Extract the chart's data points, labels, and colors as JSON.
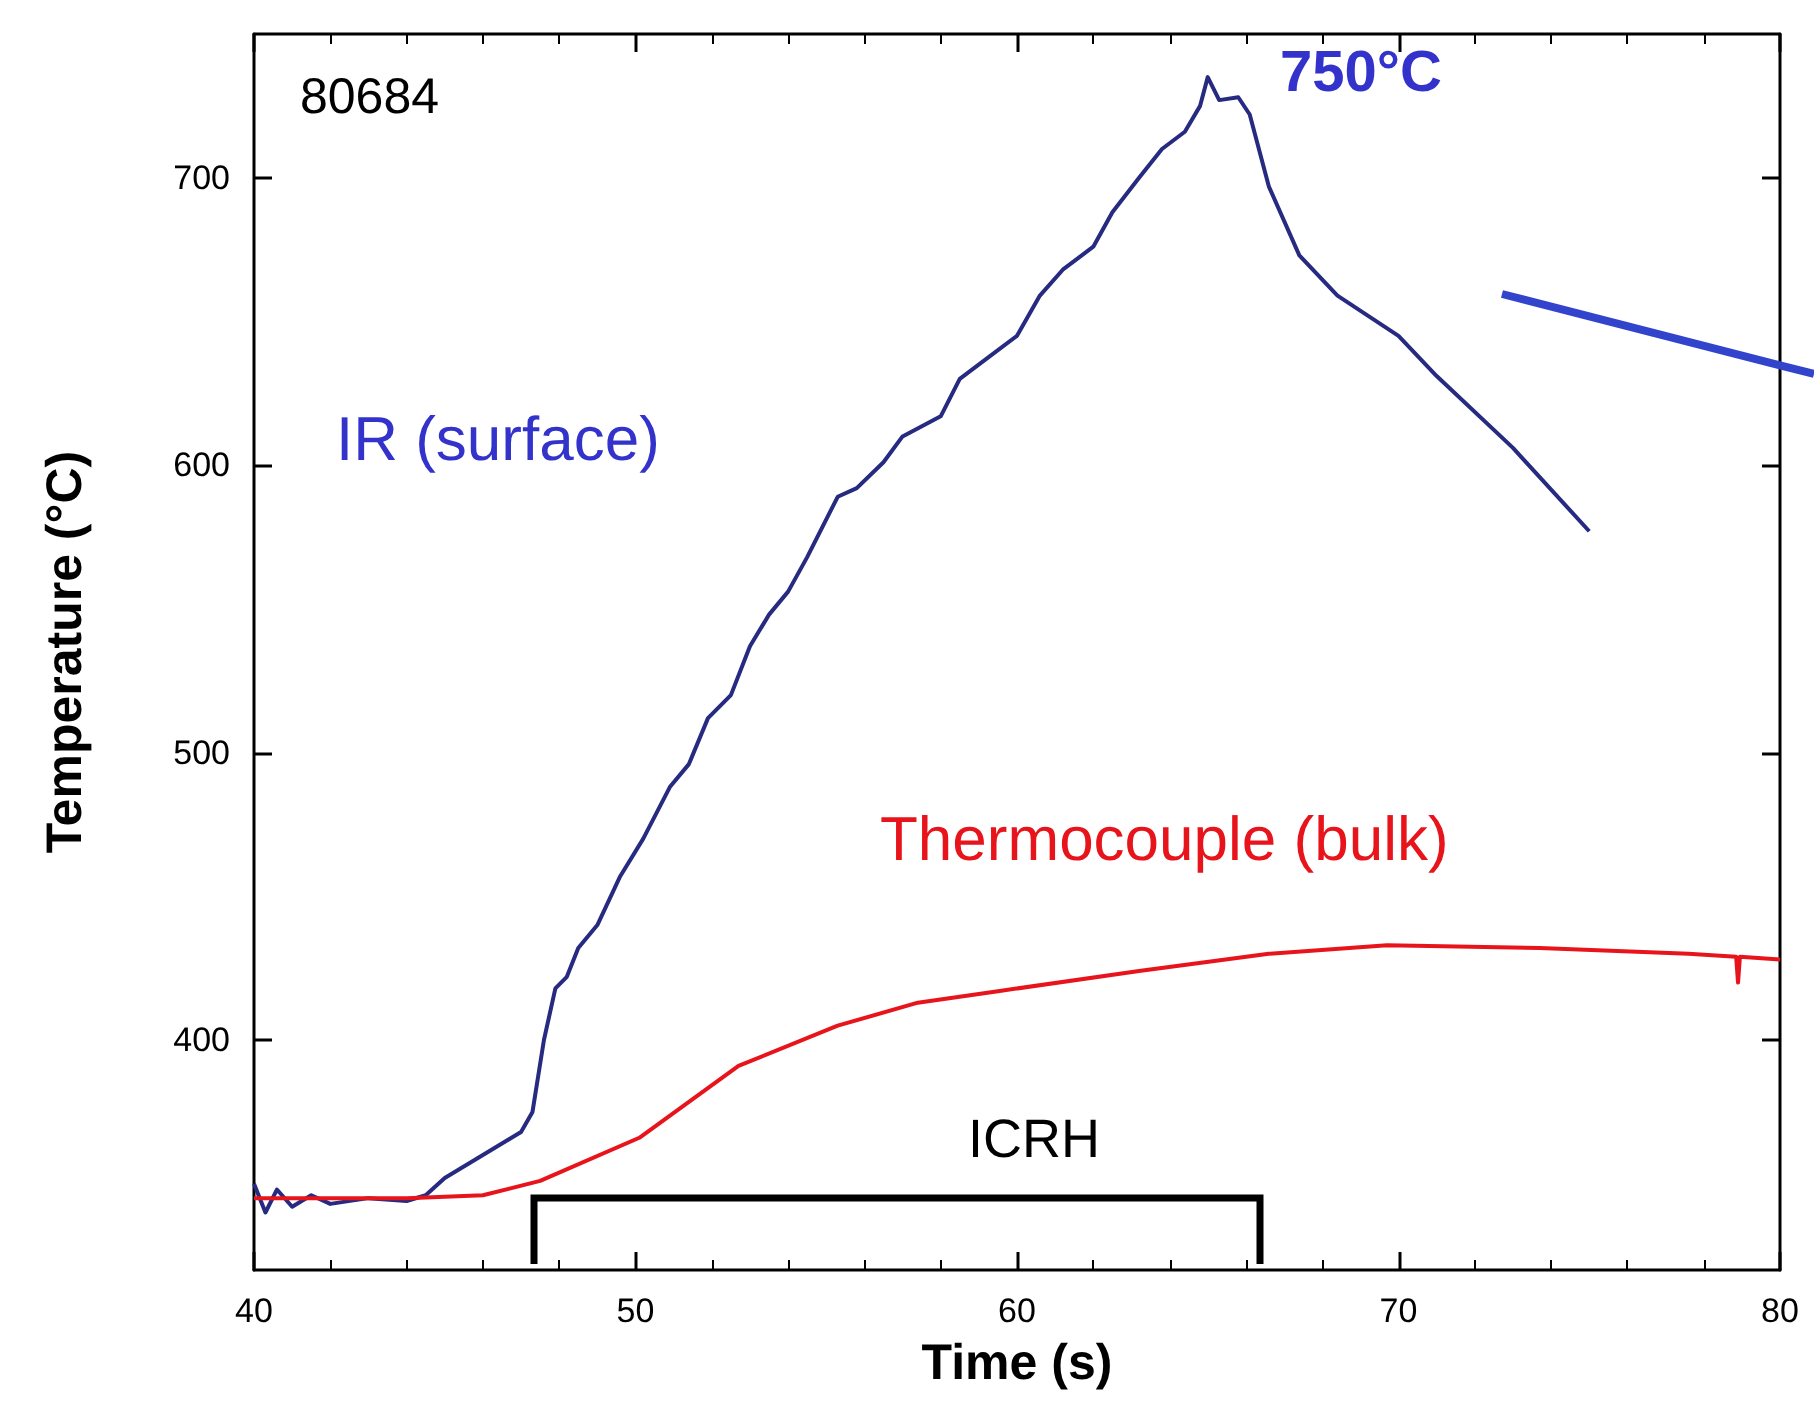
{
  "chart_data": {
    "type": "line",
    "xlabel": "Time (s)",
    "ylabel": "Temperature (°C)",
    "xlim": [
      40,
      80
    ],
    "xticks": [
      40,
      50,
      60,
      70,
      80
    ],
    "ylim": [
      320,
      750
    ],
    "yticks": [
      400,
      500,
      600,
      700
    ],
    "grid": false,
    "legend": false,
    "marker": "none",
    "line_style": "solid",
    "series": [
      {
        "name": "IR (surface)",
        "color": "#262a80",
        "x": [
          40,
          40.3,
          40.6,
          41,
          41.5,
          42,
          43,
          44,
          44.5,
          45,
          46,
          47,
          47.3,
          47.6,
          47.9,
          48.2,
          48.5,
          49,
          49.6,
          50.2,
          50.9,
          51.4,
          51.9,
          52.5,
          53,
          53.5,
          54,
          54.5,
          55.3,
          55.8,
          56.5,
          57,
          58,
          58.5,
          59.3,
          60,
          60.6,
          61.2,
          62,
          62.5,
          63.2,
          63.8,
          64.4,
          64.8,
          65,
          65.3,
          65.8,
          66.1,
          66.6,
          67.4,
          68.4,
          70,
          71,
          73,
          75
        ],
        "values": [
          350,
          340,
          348,
          342,
          346,
          343,
          345,
          344,
          346,
          352,
          360,
          368,
          375,
          400,
          418,
          422,
          432,
          440,
          457,
          470,
          488,
          496,
          512,
          520,
          537,
          548,
          556,
          568,
          589,
          592,
          601,
          610,
          617,
          630,
          638,
          645,
          659,
          668,
          676,
          688,
          700,
          710,
          716,
          725,
          735,
          727,
          728,
          722,
          697,
          673,
          659,
          645,
          631,
          606,
          577
        ]
      },
      {
        "name": "Thermocouple (bulk)",
        "color": "#e8141c",
        "x": [
          40,
          42,
          44,
          46,
          47.5,
          50.1,
          52.7,
          55.3,
          57.4,
          59.5,
          63.2,
          66.6,
          69.7,
          73.7,
          77.6,
          78.85,
          78.9,
          78.95,
          80
        ],
        "values": [
          345,
          345,
          345,
          346,
          351,
          366,
          391,
          405,
          413,
          417,
          424,
          430,
          433,
          432,
          430,
          429,
          420,
          429,
          428
        ]
      }
    ],
    "annotations": [
      "80684",
      "750°C",
      "ICRH"
    ]
  }
}
